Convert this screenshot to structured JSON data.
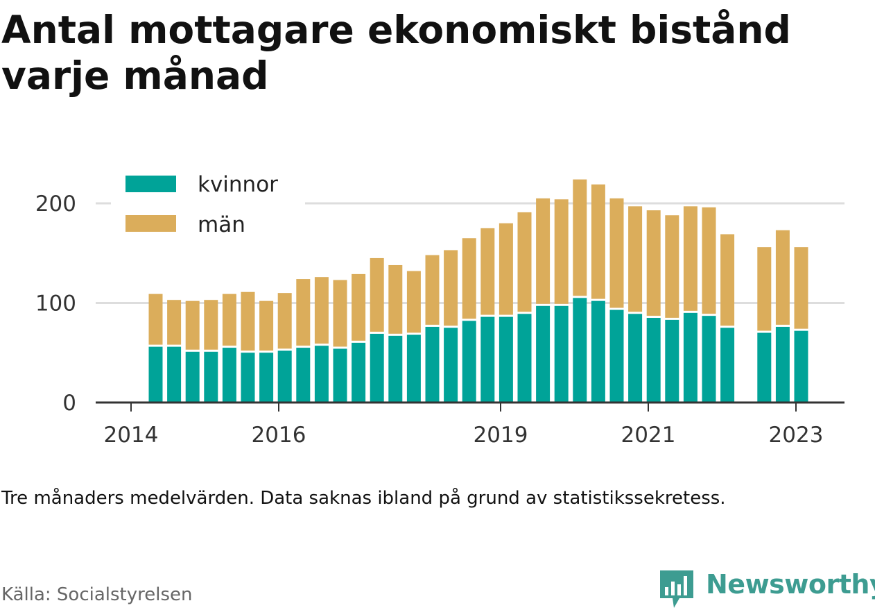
{
  "title": "Antal mottagare ekonomiskt bistånd varje månad",
  "note": "Tre månaders medelvärden. Data saknas ibland på grund av statistikssekretess.",
  "source": "Källa: Socialstyrelsen",
  "brand": "Newsworthy",
  "colors": {
    "kvinnor": "#00a398",
    "man": "#dbad5b",
    "grid": "#dddddd",
    "axis": "#333333"
  },
  "chart_data": {
    "type": "bar",
    "stacked": true,
    "x_tick_labels": [
      "2014",
      "2016",
      "2019",
      "2021",
      "2023"
    ],
    "y_tick_labels": [
      "0",
      "100",
      "200"
    ],
    "ylim": [
      0,
      240
    ],
    "grid": true,
    "legend_position": "top-left",
    "series": [
      {
        "name": "kvinnor",
        "color": "#00a398",
        "values": [
          56,
          56,
          51,
          51,
          55,
          50,
          50,
          52,
          55,
          57,
          54,
          60,
          69,
          67,
          68,
          76,
          75,
          82,
          86,
          86,
          89,
          97,
          97,
          105,
          102,
          93,
          89,
          85,
          83,
          90,
          87,
          75,
          null,
          70,
          76,
          72
        ]
      },
      {
        "name": "män",
        "color": "#dbad5b",
        "values": [
          53,
          47,
          51,
          52,
          54,
          61,
          52,
          58,
          69,
          69,
          69,
          69,
          76,
          71,
          64,
          72,
          78,
          83,
          89,
          94,
          102,
          108,
          107,
          119,
          117,
          112,
          108,
          108,
          105,
          107,
          109,
          94,
          null,
          86,
          97,
          84
        ]
      }
    ],
    "x_label": "",
    "y_label": ""
  }
}
